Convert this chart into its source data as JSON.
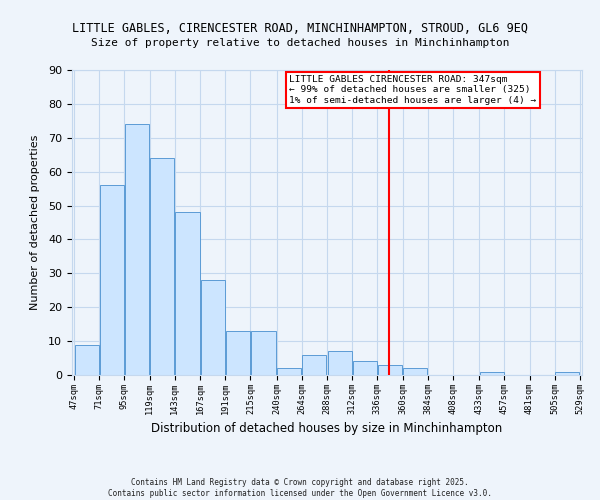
{
  "title": "LITTLE GABLES, CIRENCESTER ROAD, MINCHINHAMPTON, STROUD, GL6 9EQ",
  "subtitle": "Size of property relative to detached houses in Minchinhampton",
  "xlabel": "Distribution of detached houses by size in Minchinhampton",
  "ylabel": "Number of detached properties",
  "bar_edges": [
    47,
    71,
    95,
    119,
    143,
    167,
    191,
    215,
    240,
    264,
    288,
    312,
    336,
    360,
    384,
    408,
    433,
    457,
    481,
    505,
    529
  ],
  "bar_heights": [
    9,
    56,
    74,
    64,
    48,
    28,
    13,
    13,
    2,
    6,
    7,
    4,
    3,
    2,
    0,
    0,
    1,
    0,
    0,
    1
  ],
  "bar_color": "#cce5ff",
  "bar_edge_color": "#5b9bd5",
  "vline_x": 347,
  "vline_color": "red",
  "ylim": [
    0,
    90
  ],
  "xlim_min": 47,
  "xlim_max": 529,
  "annotation_text": "LITTLE GABLES CIRENCESTER ROAD: 347sqm\n← 99% of detached houses are smaller (325)\n1% of semi-detached houses are larger (4) →",
  "annotation_box_color": "white",
  "annotation_box_edge_color": "red",
  "footnote1": "Contains HM Land Registry data © Crown copyright and database right 2025.",
  "footnote2": "Contains public sector information licensed under the Open Government Licence v3.0.",
  "tick_labels": [
    "47sqm",
    "71sqm",
    "95sqm",
    "119sqm",
    "143sqm",
    "167sqm",
    "191sqm",
    "215sqm",
    "240sqm",
    "264sqm",
    "288sqm",
    "312sqm",
    "336sqm",
    "360sqm",
    "384sqm",
    "408sqm",
    "433sqm",
    "457sqm",
    "481sqm",
    "505sqm",
    "529sqm"
  ],
  "background_color": "#eef4fb",
  "grid_color": "#c5d8ee"
}
